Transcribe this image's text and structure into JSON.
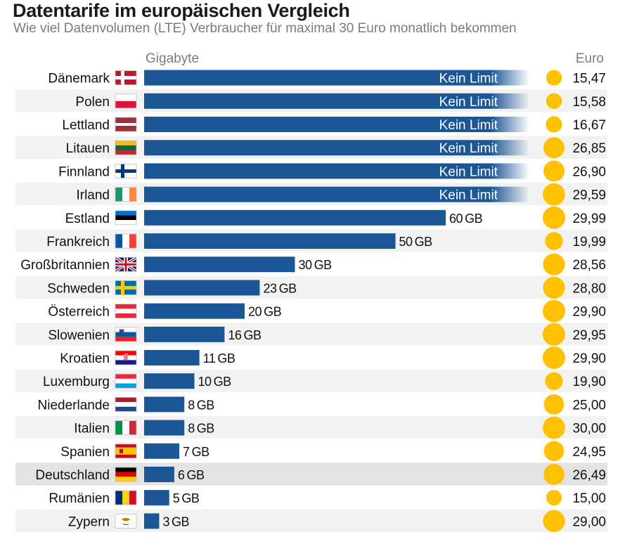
{
  "title": "Datentarife im europäischen Vergleich",
  "subtitle": "Wie viel Datenvolumen (LTE) Verbraucher für maximal 30 Euro monatlich bekommen",
  "colors": {
    "bar": "#1b5696",
    "coin": "#ffc000",
    "stripe": "#f2f2f2",
    "highlight": "#e3e3e3",
    "axis_label": "#7b7b7b"
  },
  "chart_data": {
    "type": "bar",
    "orientation": "horizontal",
    "title": "Datentarife im europäischen Vergleich",
    "subtitle": "Wie viel Datenvolumen (LTE) Verbraucher für maximal 30 Euro monatlich bekommen",
    "xlabel": "Gigabyte",
    "ylabel": "",
    "xlim": [
      0,
      70
    ],
    "unlimited_label": "Kein Limit",
    "unit_suffix": "GB",
    "price_header": "Euro",
    "highlight_category": "Deutschland",
    "categories": [
      "Dänemark",
      "Polen",
      "Lettland",
      "Litauen",
      "Finnland",
      "Irland",
      "Estland",
      "Frankreich",
      "Großbritannien",
      "Schweden",
      "Österreich",
      "Slowenien",
      "Kroatien",
      "Luxemburg",
      "Niederlande",
      "Italien",
      "Spanien",
      "Deutschland",
      "Rumänien",
      "Zypern"
    ],
    "flags": [
      "dk",
      "pl",
      "lv",
      "lt",
      "fi",
      "ie",
      "ee",
      "fr",
      "gb",
      "se",
      "at",
      "si",
      "hr",
      "lu",
      "nl",
      "it",
      "es",
      "de",
      "ro",
      "cy"
    ],
    "series": [
      {
        "values": [
          null,
          null,
          null,
          null,
          null,
          null,
          60,
          50,
          30,
          23,
          20,
          16,
          11,
          10,
          8,
          8,
          7,
          6,
          5,
          3
        ],
        "unlimited": [
          true,
          true,
          true,
          true,
          true,
          true,
          false,
          false,
          false,
          false,
          false,
          false,
          false,
          false,
          false,
          false,
          false,
          false,
          false,
          false
        ]
      },
      {
        "values": [
          "15,47",
          "15,58",
          "16,67",
          "26,85",
          "26,90",
          "29,59",
          "29,99",
          "19,99",
          "28,56",
          "28,80",
          "29,90",
          "29,95",
          "29,90",
          "19,90",
          "25,00",
          "30,00",
          "24,95",
          "26,49",
          "15,00",
          "29,00"
        ]
      }
    ]
  }
}
